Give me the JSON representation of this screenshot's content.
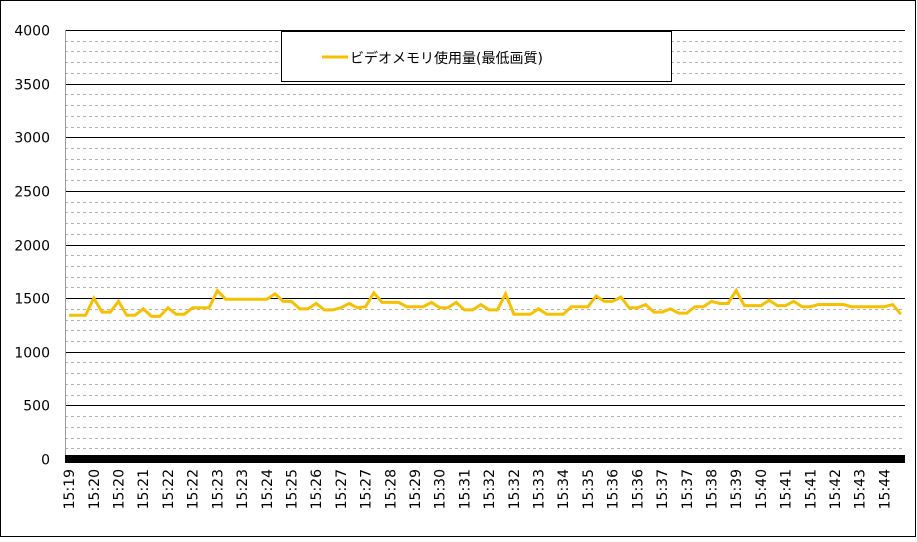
{
  "chart_data": {
    "type": "line",
    "categories": [
      "15:19",
      null,
      null,
      "15:20",
      null,
      null,
      "15:20",
      null,
      null,
      "15:21",
      null,
      null,
      "15:22",
      null,
      null,
      "15:22",
      null,
      null,
      "15:23",
      null,
      null,
      "15:23",
      null,
      null,
      "15:24",
      null,
      null,
      "15:25",
      null,
      null,
      "15:26",
      null,
      null,
      "15:27",
      null,
      null,
      "15:27",
      null,
      null,
      "15:28",
      null,
      null,
      "15:29",
      null,
      null,
      "15:30",
      null,
      null,
      "15:31",
      null,
      null,
      "15:32",
      null,
      null,
      "15:32",
      null,
      null,
      "15:33",
      null,
      null,
      "15:34",
      null,
      null,
      "15:35",
      null,
      null,
      "15:36",
      null,
      null,
      "15:36",
      null,
      null,
      "15:37",
      null,
      null,
      "15:37",
      null,
      null,
      "15:38",
      null,
      null,
      "15:39",
      null,
      null,
      "15:40",
      null,
      null,
      "15:41",
      null,
      null,
      "15:41",
      null,
      null,
      "15:42",
      null,
      null,
      "15:43",
      null,
      null,
      "15:44",
      null,
      null
    ],
    "series": [
      {
        "name": "ビデオメモリ使用量(最低画質)",
        "color": "#f5c000",
        "values": [
          1340,
          1340,
          1340,
          1500,
          1370,
          1370,
          1470,
          1340,
          1340,
          1400,
          1330,
          1330,
          1410,
          1350,
          1350,
          1410,
          1410,
          1410,
          1570,
          1490,
          1490,
          1490,
          1490,
          1490,
          1490,
          1540,
          1470,
          1470,
          1400,
          1400,
          1450,
          1390,
          1390,
          1410,
          1450,
          1410,
          1420,
          1550,
          1460,
          1460,
          1460,
          1420,
          1420,
          1420,
          1460,
          1410,
          1410,
          1460,
          1390,
          1390,
          1440,
          1390,
          1390,
          1540,
          1350,
          1350,
          1350,
          1400,
          1350,
          1350,
          1350,
          1420,
          1420,
          1420,
          1520,
          1470,
          1470,
          1510,
          1410,
          1410,
          1440,
          1370,
          1370,
          1400,
          1360,
          1360,
          1420,
          1420,
          1470,
          1450,
          1450,
          1570,
          1430,
          1430,
          1430,
          1480,
          1430,
          1430,
          1470,
          1420,
          1420,
          1440,
          1440,
          1440,
          1440,
          1420,
          1420,
          1420,
          1420,
          1420,
          1440,
          1350
        ]
      }
    ],
    "ylim": [
      0,
      4000
    ],
    "yticks": [
      0,
      500,
      1000,
      1500,
      2000,
      2500,
      3000,
      3500,
      4000
    ],
    "minor_yticks": [
      100,
      200,
      300,
      400,
      600,
      700,
      800,
      900,
      1100,
      1200,
      1300,
      1400,
      1600,
      1700,
      1800,
      1900,
      2100,
      2200,
      2300,
      2400,
      2600,
      2700,
      2800,
      2900,
      3100,
      3200,
      3300,
      3400,
      3600,
      3700,
      3800,
      3900
    ],
    "grid": true
  }
}
